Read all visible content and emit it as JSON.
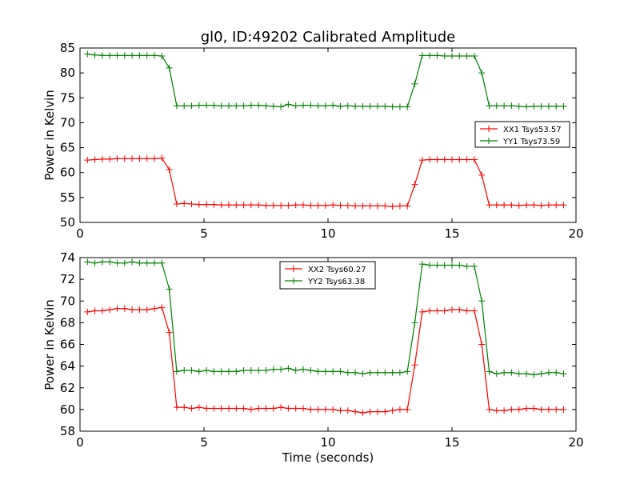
{
  "chart_data": [
    {
      "type": "line",
      "title": "gl0, ID:49202 Calibrated Amplitude",
      "xlabel": "",
      "ylabel": "Power in Kelvin",
      "xlim": [
        0,
        20
      ],
      "ylim": [
        50,
        85
      ],
      "xticks": [
        "0",
        "5",
        "10",
        "15",
        "20"
      ],
      "yticks": [
        "50",
        "55",
        "60",
        "65",
        "70",
        "75",
        "80",
        "85"
      ],
      "legend_position": "center-right",
      "series": [
        {
          "name": "XX1 Tsys53.57",
          "color": "#ff0000",
          "x": [
            0.3,
            0.6,
            0.9,
            1.2,
            1.5,
            1.8,
            2.1,
            2.4,
            2.7,
            3.0,
            3.3,
            3.6,
            3.9,
            4.2,
            4.5,
            4.8,
            5.1,
            5.4,
            5.7,
            6.0,
            6.3,
            6.6,
            6.9,
            7.2,
            7.5,
            7.8,
            8.1,
            8.4,
            8.7,
            9.0,
            9.3,
            9.6,
            9.9,
            10.2,
            10.5,
            10.8,
            11.1,
            11.4,
            11.7,
            12.0,
            12.3,
            12.6,
            12.9,
            13.2,
            13.5,
            13.8,
            14.1,
            14.4,
            14.7,
            15.0,
            15.3,
            15.6,
            15.9,
            16.2,
            16.5,
            16.8,
            17.1,
            17.4,
            17.7,
            18.0,
            18.3,
            18.6,
            18.9,
            19.2,
            19.5
          ],
          "values": [
            62.5,
            62.6,
            62.7,
            62.7,
            62.8,
            62.8,
            62.8,
            62.8,
            62.8,
            62.8,
            62.9,
            60.6,
            53.7,
            53.8,
            53.7,
            53.6,
            53.6,
            53.6,
            53.5,
            53.5,
            53.5,
            53.5,
            53.5,
            53.5,
            53.4,
            53.4,
            53.4,
            53.4,
            53.5,
            53.5,
            53.4,
            53.4,
            53.4,
            53.5,
            53.4,
            53.4,
            53.3,
            53.3,
            53.3,
            53.3,
            53.3,
            53.2,
            53.3,
            53.3,
            57.6,
            62.5,
            62.6,
            62.6,
            62.6,
            62.6,
            62.6,
            62.6,
            62.6,
            59.5,
            53.5,
            53.5,
            53.5,
            53.5,
            53.4,
            53.5,
            53.5,
            53.4,
            53.5,
            53.5,
            53.5
          ]
        },
        {
          "name": "YY1 Tsys73.59",
          "color": "#008000",
          "x": [
            0.3,
            0.6,
            0.9,
            1.2,
            1.5,
            1.8,
            2.1,
            2.4,
            2.7,
            3.0,
            3.3,
            3.6,
            3.9,
            4.2,
            4.5,
            4.8,
            5.1,
            5.4,
            5.7,
            6.0,
            6.3,
            6.6,
            6.9,
            7.2,
            7.5,
            7.8,
            8.1,
            8.4,
            8.7,
            9.0,
            9.3,
            9.6,
            9.9,
            10.2,
            10.5,
            10.8,
            11.1,
            11.4,
            11.7,
            12.0,
            12.3,
            12.6,
            12.9,
            13.2,
            13.5,
            13.8,
            14.1,
            14.4,
            14.7,
            15.0,
            15.3,
            15.6,
            15.9,
            16.2,
            16.5,
            16.8,
            17.1,
            17.4,
            17.7,
            18.0,
            18.3,
            18.6,
            18.9,
            19.2,
            19.5
          ],
          "values": [
            83.8,
            83.6,
            83.5,
            83.5,
            83.5,
            83.5,
            83.5,
            83.5,
            83.5,
            83.5,
            83.4,
            81.0,
            73.4,
            73.4,
            73.4,
            73.5,
            73.5,
            73.5,
            73.4,
            73.4,
            73.4,
            73.4,
            73.5,
            73.5,
            73.4,
            73.3,
            73.2,
            73.7,
            73.4,
            73.5,
            73.5,
            73.4,
            73.4,
            73.5,
            73.3,
            73.4,
            73.3,
            73.3,
            73.3,
            73.3,
            73.3,
            73.2,
            73.2,
            73.2,
            77.8,
            83.5,
            83.5,
            83.5,
            83.4,
            83.4,
            83.4,
            83.4,
            83.4,
            80.0,
            73.4,
            73.4,
            73.4,
            73.4,
            73.3,
            73.2,
            73.3,
            73.3,
            73.3,
            73.3,
            73.3
          ]
        }
      ]
    },
    {
      "type": "line",
      "title": "",
      "xlabel": "Time (seconds)",
      "ylabel": "Power in Kelvin",
      "xlim": [
        0,
        20
      ],
      "ylim": [
        58,
        74
      ],
      "xticks": [
        "0",
        "5",
        "10",
        "15",
        "20"
      ],
      "yticks": [
        "58",
        "60",
        "62",
        "64",
        "66",
        "68",
        "70",
        "72",
        "74"
      ],
      "legend_position": "upper-center",
      "series": [
        {
          "name": "XX2 Tsys60.27",
          "color": "#ff0000",
          "x": [
            0.3,
            0.6,
            0.9,
            1.2,
            1.5,
            1.8,
            2.1,
            2.4,
            2.7,
            3.0,
            3.3,
            3.6,
            3.9,
            4.2,
            4.5,
            4.8,
            5.1,
            5.4,
            5.7,
            6.0,
            6.3,
            6.6,
            6.9,
            7.2,
            7.5,
            7.8,
            8.1,
            8.4,
            8.7,
            9.0,
            9.3,
            9.6,
            9.9,
            10.2,
            10.5,
            10.8,
            11.1,
            11.4,
            11.7,
            12.0,
            12.3,
            12.6,
            12.9,
            13.2,
            13.5,
            13.8,
            14.1,
            14.4,
            14.7,
            15.0,
            15.3,
            15.6,
            15.9,
            16.2,
            16.5,
            16.8,
            17.1,
            17.4,
            17.7,
            18.0,
            18.3,
            18.6,
            18.9,
            19.2,
            19.5
          ],
          "values": [
            69.0,
            69.1,
            69.1,
            69.2,
            69.3,
            69.3,
            69.2,
            69.2,
            69.2,
            69.3,
            69.4,
            67.1,
            60.2,
            60.2,
            60.1,
            60.2,
            60.1,
            60.1,
            60.1,
            60.1,
            60.1,
            60.1,
            60.0,
            60.1,
            60.1,
            60.1,
            60.2,
            60.1,
            60.1,
            60.1,
            60.0,
            60.0,
            60.0,
            60.0,
            59.9,
            59.9,
            59.8,
            59.7,
            59.8,
            59.8,
            59.8,
            59.9,
            60.0,
            60.0,
            64.1,
            69.0,
            69.1,
            69.1,
            69.1,
            69.2,
            69.2,
            69.1,
            69.1,
            66.0,
            60.0,
            59.9,
            59.9,
            60.0,
            60.0,
            60.1,
            60.1,
            60.0,
            60.0,
            60.0,
            60.0
          ]
        },
        {
          "name": "YY2 Tsys63.38",
          "color": "#008000",
          "x": [
            0.3,
            0.6,
            0.9,
            1.2,
            1.5,
            1.8,
            2.1,
            2.4,
            2.7,
            3.0,
            3.3,
            3.6,
            3.9,
            4.2,
            4.5,
            4.8,
            5.1,
            5.4,
            5.7,
            6.0,
            6.3,
            6.6,
            6.9,
            7.2,
            7.5,
            7.8,
            8.1,
            8.4,
            8.7,
            9.0,
            9.3,
            9.6,
            9.9,
            10.2,
            10.5,
            10.8,
            11.1,
            11.4,
            11.7,
            12.0,
            12.3,
            12.6,
            12.9,
            13.2,
            13.5,
            13.8,
            14.1,
            14.4,
            14.7,
            15.0,
            15.3,
            15.6,
            15.9,
            16.2,
            16.5,
            16.8,
            17.1,
            17.4,
            17.7,
            18.0,
            18.3,
            18.6,
            18.9,
            19.2,
            19.5
          ],
          "values": [
            73.6,
            73.5,
            73.6,
            73.6,
            73.5,
            73.5,
            73.6,
            73.5,
            73.5,
            73.5,
            73.5,
            71.1,
            63.5,
            63.6,
            63.6,
            63.5,
            63.6,
            63.5,
            63.5,
            63.5,
            63.5,
            63.6,
            63.6,
            63.6,
            63.6,
            63.7,
            63.7,
            63.8,
            63.6,
            63.7,
            63.6,
            63.5,
            63.5,
            63.5,
            63.5,
            63.4,
            63.4,
            63.3,
            63.4,
            63.4,
            63.4,
            63.4,
            63.4,
            63.5,
            68.0,
            73.4,
            73.3,
            73.3,
            73.3,
            73.3,
            73.3,
            73.2,
            73.2,
            70.0,
            63.5,
            63.3,
            63.4,
            63.4,
            63.3,
            63.3,
            63.2,
            63.3,
            63.4,
            63.4,
            63.3
          ]
        }
      ]
    }
  ]
}
